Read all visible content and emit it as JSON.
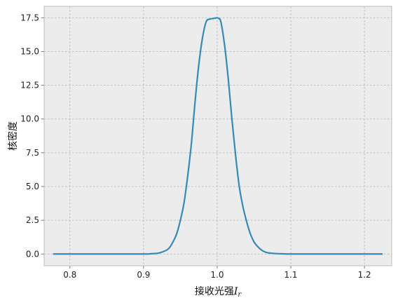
{
  "chart_data": {
    "type": "line",
    "title": "",
    "xlabel": "接收光强",
    "xlabel_symbol": "I",
    "xlabel_subscript": "r",
    "ylabel": "核密度",
    "xlim": [
      0.765,
      1.237
    ],
    "ylim": [
      -0.87,
      18.35
    ],
    "xticks": [
      0.8,
      0.9,
      1.0,
      1.1,
      1.2
    ],
    "xtick_labels": [
      "0.8",
      "0.9",
      "1.0",
      "1.1",
      "1.2"
    ],
    "yticks": [
      0.0,
      2.5,
      5.0,
      7.5,
      10.0,
      12.5,
      15.0,
      17.5
    ],
    "ytick_labels": [
      "0.0",
      "2.5",
      "5.0",
      "7.5",
      "10.0",
      "12.5",
      "15.0",
      "17.5"
    ],
    "grid": true,
    "legend": "none",
    "background_color": "#ececec",
    "line_color": "#348abd",
    "grid_color": "#b0b0b0",
    "series": [
      {
        "x": [
          0.778,
          0.85,
          0.9,
          0.91,
          0.92,
          0.93,
          0.935,
          0.94,
          0.945,
          0.95,
          0.955,
          0.96,
          0.965,
          0.97,
          0.975,
          0.98,
          0.985,
          0.99,
          0.995,
          1.0,
          1.002,
          1.005,
          1.01,
          1.015,
          1.02,
          1.025,
          1.03,
          1.035,
          1.04,
          1.045,
          1.05,
          1.055,
          1.06,
          1.065,
          1.07,
          1.08,
          1.09,
          1.1,
          1.15,
          1.224
        ],
        "values": [
          0.0,
          0.0,
          0.0,
          0.02,
          0.06,
          0.25,
          0.45,
          0.9,
          1.5,
          2.5,
          3.8,
          5.8,
          8.2,
          11.3,
          14.0,
          16.0,
          17.2,
          17.4,
          17.45,
          17.5,
          17.45,
          17.2,
          15.5,
          13.0,
          10.0,
          7.3,
          5.0,
          3.5,
          2.4,
          1.5,
          0.9,
          0.55,
          0.3,
          0.15,
          0.08,
          0.03,
          0.01,
          0.0,
          0.0,
          0.0
        ]
      }
    ]
  }
}
